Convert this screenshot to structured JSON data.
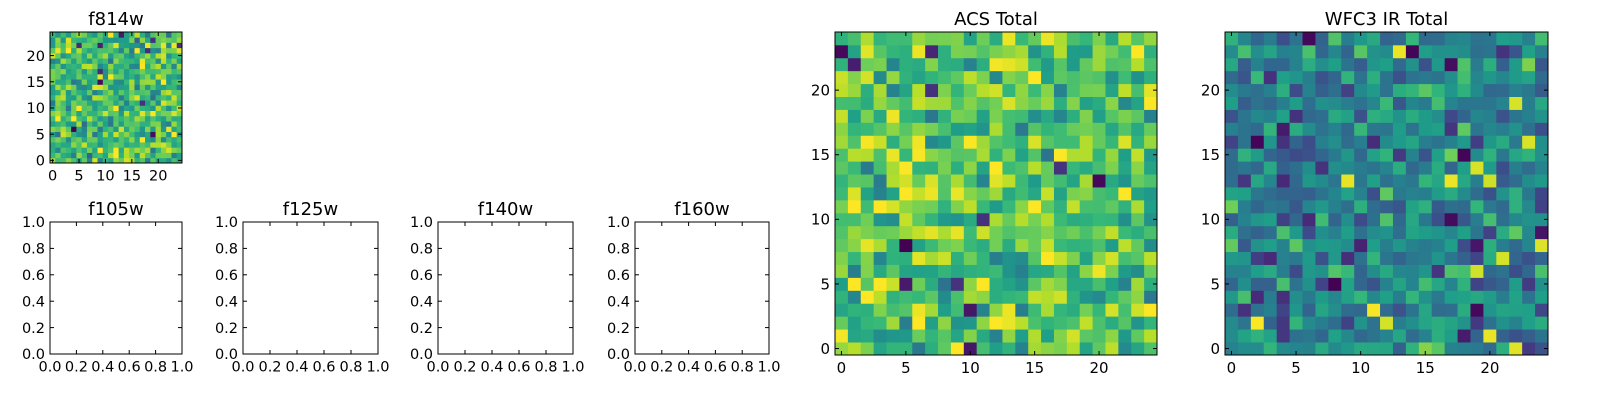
{
  "chart_data": [
    {
      "type": "heatmap",
      "title": "f814w",
      "xlabel": "",
      "ylabel": "",
      "xlim": [
        -0.5,
        24.5
      ],
      "ylim": [
        -0.5,
        24.5
      ],
      "xticks": [
        "0",
        "5",
        "10",
        "15",
        "20"
      ],
      "yticks": [
        "0",
        "5",
        "10",
        "15",
        "20"
      ],
      "grid_size": [
        25,
        25
      ],
      "colormap": "viridis",
      "value_range": [
        0.0,
        1.0
      ],
      "value_description": "dense random pixel values, mostly green-yellow with scattered dark pixels",
      "mean_value": 0.68
    },
    {
      "type": "line",
      "title": "f105w",
      "xlabel": "",
      "ylabel": "",
      "xlim": [
        0.0,
        1.0
      ],
      "ylim": [
        0.0,
        1.0
      ],
      "xticks": [
        "0.0",
        "0.2",
        "0.4",
        "0.6",
        "0.8",
        "1.0"
      ],
      "yticks": [
        "0.0",
        "0.2",
        "0.4",
        "0.6",
        "0.8",
        "1.0"
      ],
      "series": []
    },
    {
      "type": "line",
      "title": "f125w",
      "xlabel": "",
      "ylabel": "",
      "xlim": [
        0.0,
        1.0
      ],
      "ylim": [
        0.0,
        1.0
      ],
      "xticks": [
        "0.0",
        "0.2",
        "0.4",
        "0.6",
        "0.8",
        "1.0"
      ],
      "yticks": [
        "0.0",
        "0.2",
        "0.4",
        "0.6",
        "0.8",
        "1.0"
      ],
      "series": []
    },
    {
      "type": "line",
      "title": "f140w",
      "xlabel": "",
      "ylabel": "",
      "xlim": [
        0.0,
        1.0
      ],
      "ylim": [
        0.0,
        1.0
      ],
      "xticks": [
        "0.0",
        "0.2",
        "0.4",
        "0.6",
        "0.8",
        "1.0"
      ],
      "yticks": [
        "0.0",
        "0.2",
        "0.4",
        "0.6",
        "0.8",
        "1.0"
      ],
      "series": []
    },
    {
      "type": "line",
      "title": "f160w",
      "xlabel": "",
      "ylabel": "",
      "xlim": [
        0.0,
        1.0
      ],
      "ylim": [
        0.0,
        1.0
      ],
      "xticks": [
        "0.0",
        "0.2",
        "0.4",
        "0.6",
        "0.8",
        "1.0"
      ],
      "yticks": [
        "0.0",
        "0.2",
        "0.4",
        "0.6",
        "0.8",
        "1.0"
      ],
      "series": []
    },
    {
      "type": "heatmap",
      "title": "ACS Total",
      "xlabel": "",
      "ylabel": "",
      "xlim": [
        -0.5,
        24.5
      ],
      "ylim": [
        -0.5,
        24.5
      ],
      "xticks": [
        "0",
        "5",
        "10",
        "15",
        "20"
      ],
      "yticks": [
        "0",
        "5",
        "10",
        "15",
        "20"
      ],
      "grid_size": [
        25,
        25
      ],
      "colormap": "viridis",
      "value_range": [
        0.0,
        1.0
      ],
      "value_description": "random pixel values, predominantly light green to yellow with a few dark purple pixels",
      "mean_value": 0.72
    },
    {
      "type": "heatmap",
      "title": "WFC3 IR Total",
      "xlabel": "",
      "ylabel": "",
      "xlim": [
        -0.5,
        24.5
      ],
      "ylim": [
        -0.5,
        24.5
      ],
      "xticks": [
        "0",
        "5",
        "10",
        "15",
        "20"
      ],
      "yticks": [
        "0",
        "5",
        "10",
        "15",
        "20"
      ],
      "grid_size": [
        25,
        25
      ],
      "colormap": "viridis",
      "value_range": [
        0.0,
        1.0
      ],
      "value_description": "random pixel values, predominantly teal with scattered dark purple and a few yellow pixels",
      "mean_value": 0.45
    }
  ]
}
